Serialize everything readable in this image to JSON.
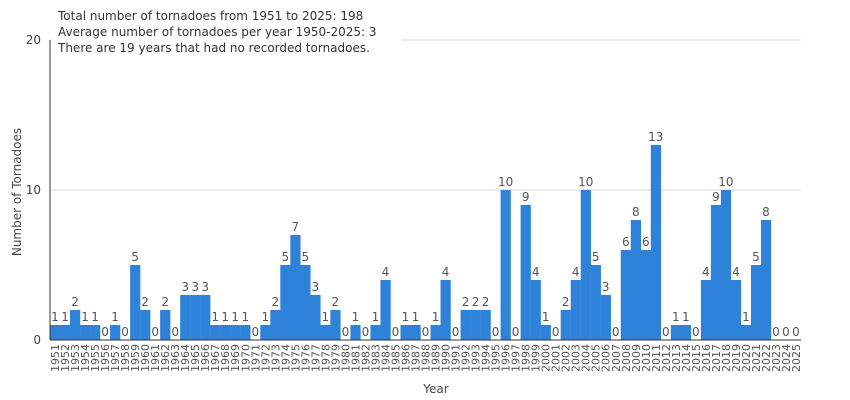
{
  "chart_data": {
    "type": "bar",
    "xlabel": "Year",
    "ylabel": "Number of Tornadoes",
    "ylim": [
      0,
      20
    ],
    "yticks": [
      0,
      10,
      20
    ],
    "grid": true,
    "bar_color": "#2f82d9",
    "annotations": [
      "Total number of tornadoes from 1951 to 2025: 198",
      "Average number of tornadoes per year 1950-2025: 3",
      "There are 19 years that had no recorded tornadoes."
    ],
    "categories": [
      "1951",
      "1952",
      "1953",
      "1954",
      "1955",
      "1956",
      "1957",
      "1958",
      "1959",
      "1960",
      "1961",
      "1962",
      "1963",
      "1964",
      "1965",
      "1966",
      "1967",
      "1968",
      "1969",
      "1970",
      "1971",
      "1972",
      "1973",
      "1974",
      "1975",
      "1976",
      "1977",
      "1978",
      "1979",
      "1980",
      "1981",
      "1982",
      "1983",
      "1984",
      "1985",
      "1986",
      "1987",
      "1988",
      "1989",
      "1990",
      "1991",
      "1992",
      "1993",
      "1994",
      "1995",
      "1996",
      "1997",
      "1998",
      "1999",
      "2000",
      "2001",
      "2002",
      "2003",
      "2004",
      "2005",
      "2006",
      "2007",
      "2008",
      "2009",
      "2010",
      "2011",
      "2012",
      "2013",
      "2014",
      "2015",
      "2016",
      "2017",
      "2018",
      "2019",
      "2020",
      "2021",
      "2022",
      "2023",
      "2024",
      "2025"
    ],
    "values": [
      1,
      1,
      2,
      1,
      1,
      0,
      1,
      0,
      5,
      2,
      0,
      2,
      0,
      3,
      3,
      3,
      1,
      1,
      1,
      1,
      0,
      1,
      2,
      5,
      7,
      5,
      3,
      1,
      2,
      0,
      1,
      0,
      1,
      4,
      0,
      1,
      1,
      0,
      1,
      4,
      0,
      2,
      2,
      2,
      0,
      10,
      0,
      9,
      4,
      1,
      0,
      2,
      4,
      10,
      5,
      3,
      0,
      6,
      8,
      6,
      13,
      0,
      1,
      1,
      0,
      4,
      9,
      10,
      4,
      1,
      5,
      8,
      0,
      0,
      0
    ]
  }
}
